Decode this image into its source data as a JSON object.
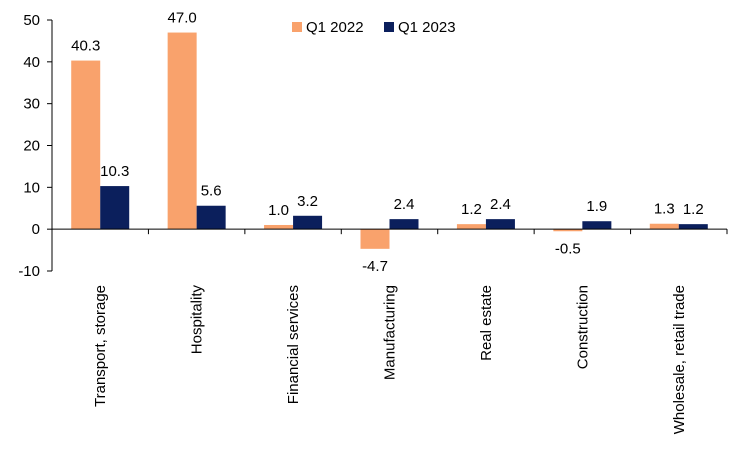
{
  "chart_data": {
    "type": "bar",
    "categories": [
      "Transport, storage",
      "Hospitality",
      "Financial services",
      "Manufacturing",
      "Real estate",
      "Construction",
      "Wholesale, retail trade"
    ],
    "series": [
      {
        "name": "Q1 2022",
        "color": "#F9A26C",
        "values": [
          40.3,
          47.0,
          1.0,
          -4.7,
          1.2,
          -0.5,
          1.3
        ],
        "labels": [
          "40.3",
          "47.0",
          "1.0",
          "-4.7",
          "1.2",
          "-0.5",
          "1.3"
        ]
      },
      {
        "name": "Q1 2023",
        "color": "#0B1F5C",
        "values": [
          10.3,
          5.6,
          3.2,
          2.4,
          2.4,
          1.9,
          1.2
        ],
        "labels": [
          "10.3",
          "5.6",
          "3.2",
          "2.4",
          "2.4",
          "1.9",
          "1.2"
        ]
      }
    ],
    "ylim": [
      -10,
      50
    ],
    "yticks": [
      -10,
      0,
      10,
      20,
      30,
      40,
      50
    ],
    "grid": false,
    "legend_position": "top-center",
    "title": "",
    "xlabel": "",
    "ylabel": ""
  }
}
